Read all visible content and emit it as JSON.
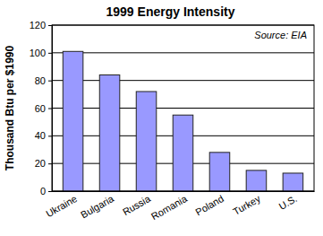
{
  "chart_data": {
    "type": "bar",
    "title": "1999 Energy Intensity",
    "y_label": "Thousand Btu per $1990",
    "annotation": "Source: EIA",
    "categories": [
      "Ukraine",
      "Bulgaria",
      "Russia",
      "Romania",
      "Poland",
      "Turkey",
      "U.S."
    ],
    "values": [
      101,
      84,
      72,
      55,
      28,
      15,
      13
    ],
    "color": "#9999ff",
    "ylim": [
      0,
      120
    ],
    "yticks": [
      0,
      20,
      40,
      60,
      80,
      100,
      120
    ],
    "grid": true
  }
}
